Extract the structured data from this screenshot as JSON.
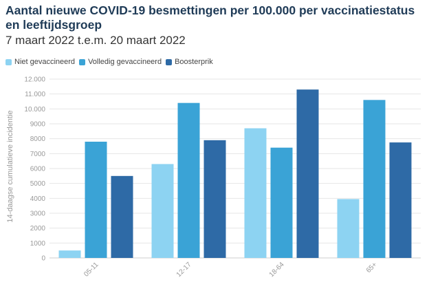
{
  "header": {
    "title": "Aantal nieuwe COVID-19 besmettingen per 100.000 per vaccinatiestatus en leeftijdsgroep",
    "subtitle": "7 maart 2022 t.e.m. 20 maart 2022"
  },
  "chart_data": {
    "type": "bar",
    "title": "Aantal nieuwe COVID-19 besmettingen per 100.000 per vaccinatiestatus en leeftijdsgroep",
    "subtitle": "7 maart 2022 t.e.m. 20 maart 2022",
    "xlabel": "",
    "ylabel": "14-daagse cumulatieve incidentie",
    "categories": [
      "05-11",
      "12-17",
      "18-64",
      "65+"
    ],
    "series": [
      {
        "name": "Niet gevaccineerd",
        "color": "#8dd3f2",
        "values": [
          500,
          6300,
          8700,
          3950
        ]
      },
      {
        "name": "Volledig gevaccineerd",
        "color": "#3aa3d6",
        "values": [
          7800,
          10400,
          7400,
          10600
        ]
      },
      {
        "name": "Boosterprik",
        "color": "#2e6aa6",
        "values": [
          5500,
          7900,
          11300,
          7750
        ]
      }
    ],
    "ylim": [
      0,
      12000
    ],
    "yticks": [
      0,
      1000,
      2000,
      3000,
      4000,
      5000,
      6000,
      7000,
      8000,
      9000,
      10000,
      11000,
      12000
    ],
    "ytick_labels": [
      "0",
      "1000",
      "2000",
      "3000",
      "4000",
      "5000",
      "6000",
      "7000",
      "8000",
      "9000",
      "10.000",
      "11.000",
      "12.000"
    ],
    "grid": true,
    "legend_position": "top-left"
  }
}
